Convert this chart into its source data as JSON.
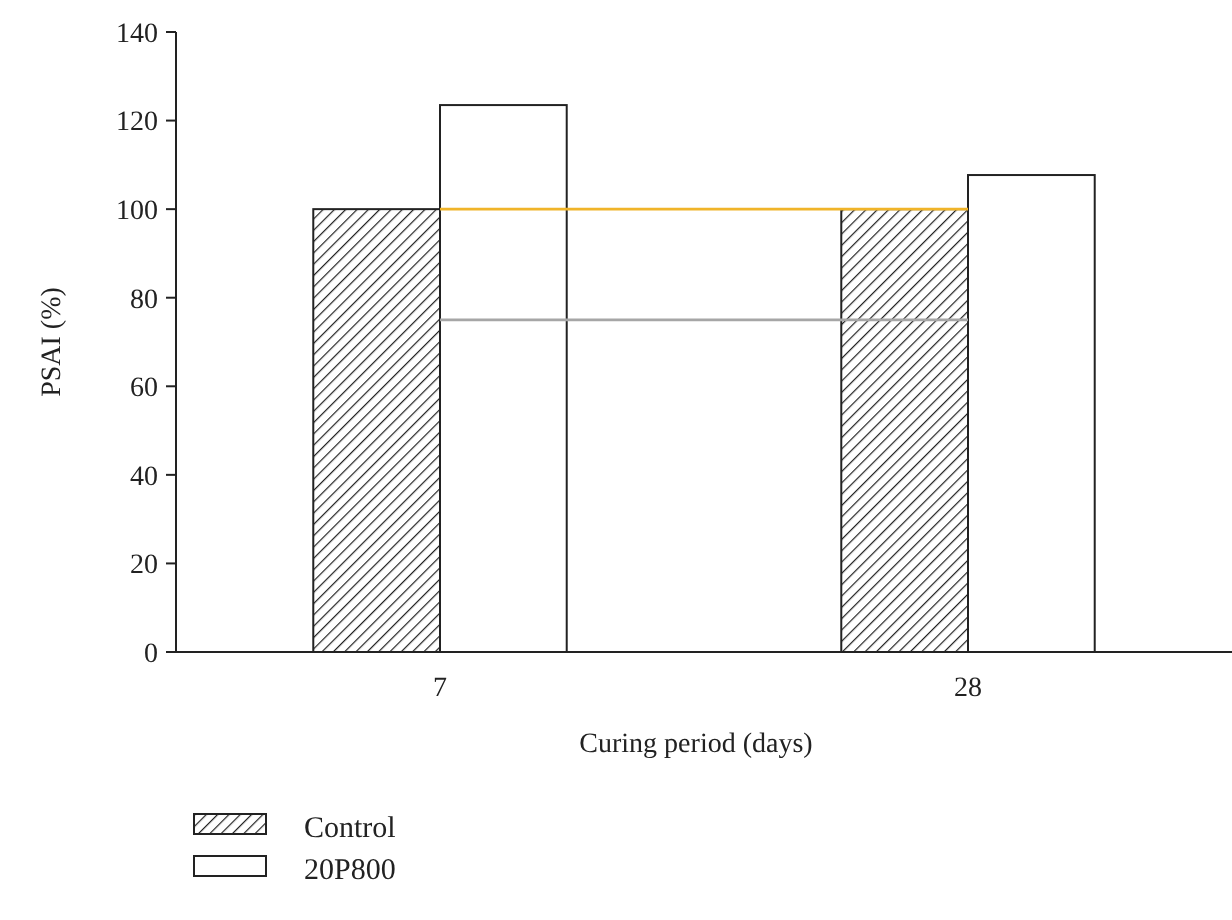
{
  "chart_data": {
    "type": "bar",
    "xlabel": "Curing period (days)",
    "ylabel": "PSAI (%)",
    "categories": [
      "7",
      "28"
    ],
    "series": [
      {
        "name": "Control",
        "color": "#222222",
        "values": [
          100,
          100
        ]
      },
      {
        "name": "20P800",
        "color": "#ffffff",
        "values": [
          123.5,
          107.7
        ]
      }
    ],
    "ylim": [
      0,
      140
    ],
    "yticks": [
      0,
      20,
      40,
      60,
      80,
      100,
      120,
      140
    ],
    "grid": false,
    "legend": "bottom left",
    "ref_lines": [
      {
        "axis": "y",
        "value": 100,
        "color": "#f0b429"
      },
      {
        "axis": "y",
        "value": 75,
        "color": "#a6a6a6"
      }
    ]
  }
}
